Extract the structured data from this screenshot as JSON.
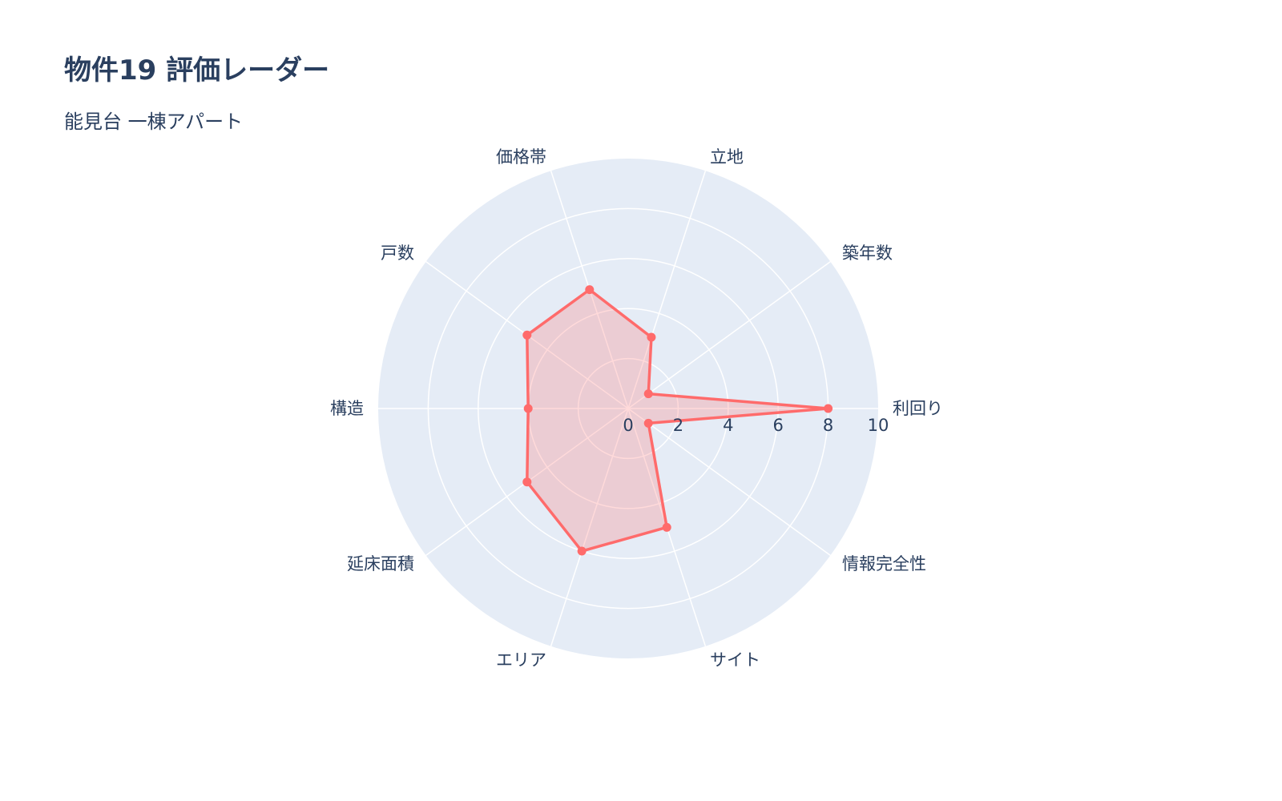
{
  "chart_data": {
    "type": "radar",
    "title": "物件19 評価レーダー",
    "subtitle": "能見台 一棟アパート",
    "categories": [
      "利回り",
      "築年数",
      "立地",
      "価格帯",
      "戸数",
      "構造",
      "延床面積",
      "エリア",
      "サイト",
      "情報完全性"
    ],
    "values": [
      8,
      1,
      3,
      5,
      5,
      4,
      5,
      6,
      5,
      1
    ],
    "radial_range": [
      0,
      10
    ],
    "radial_ticks": [
      "0",
      "2",
      "4",
      "6",
      "8",
      "10"
    ],
    "colors": {
      "line": "#ff6b6b",
      "fill": "rgba(255,107,107,0.25)",
      "polar_bg": "#e5ecf6",
      "grid": "#ffffff"
    }
  }
}
